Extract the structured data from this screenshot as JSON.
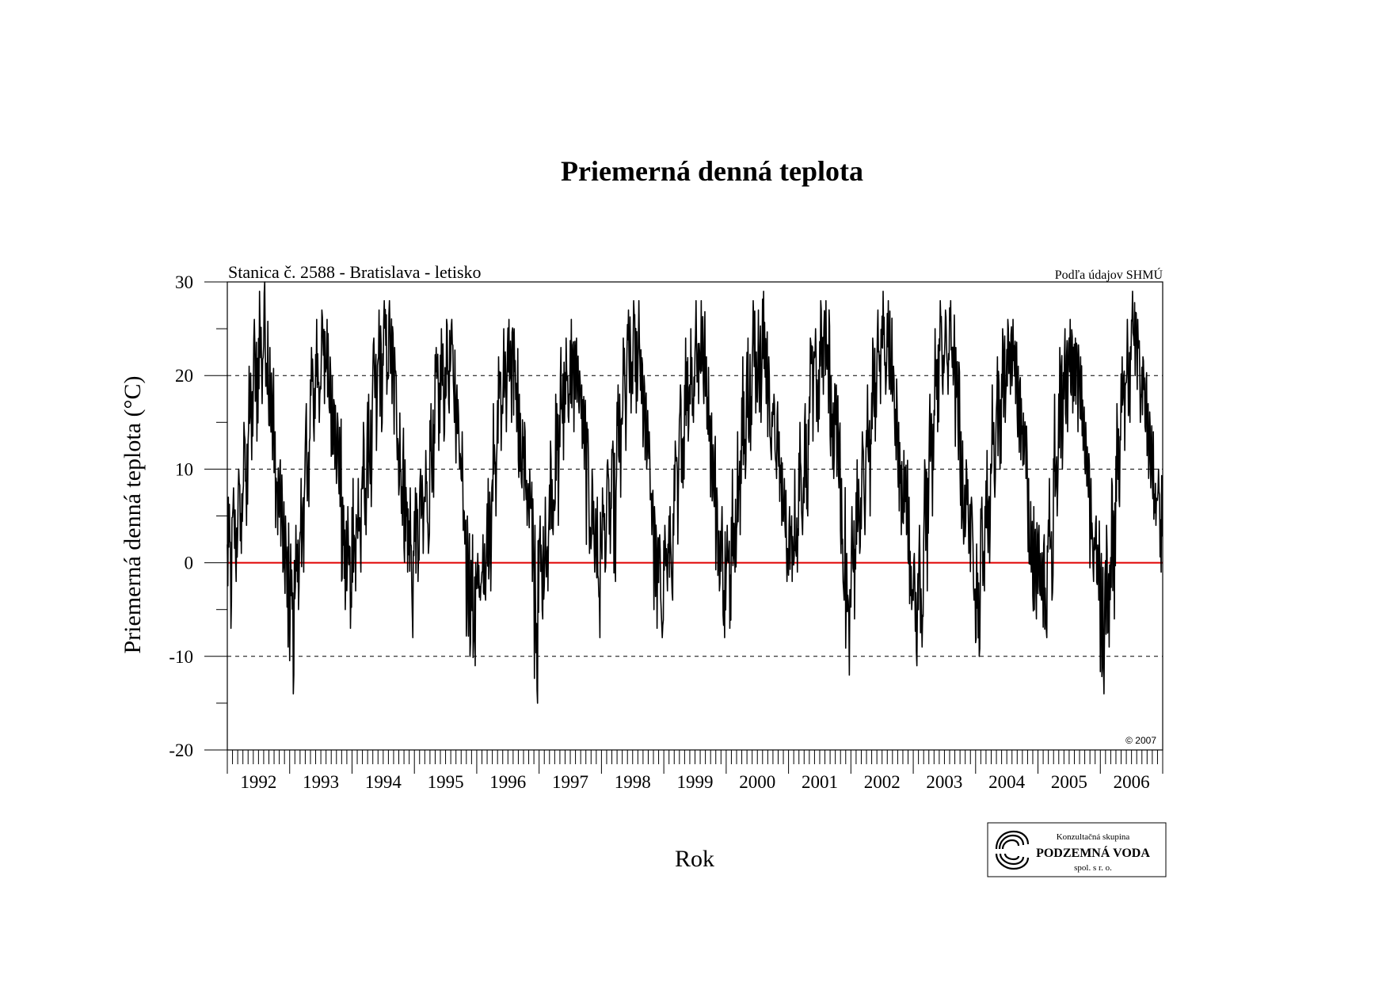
{
  "chart_data": {
    "type": "line",
    "title": "Priemerná denná teplota",
    "subtitle": "Stanica č. 2588 - Bratislava - letisko",
    "source": "Podľa údajov SHMÚ",
    "copyright": "© 2007",
    "xlabel": "Rok",
    "ylabel": "Priemerná denná teplota (°C)",
    "ylim": [
      -20,
      30
    ],
    "yticks": [
      30,
      20,
      10,
      0,
      -10,
      -20
    ],
    "gridlines": [
      20,
      10,
      -10
    ],
    "reference_line": {
      "value": 0,
      "color": "#e00000"
    },
    "x_year_labels": [
      "1992",
      "1993",
      "1994",
      "1995",
      "1996",
      "1997",
      "1998",
      "1999",
      "2000",
      "2001",
      "2002",
      "2003",
      "2004",
      "2005",
      "2006"
    ],
    "x_range": [
      "1992-01-01",
      "2006-12-31"
    ],
    "series": [
      {
        "color": "#000000",
        "x_unit": "month",
        "x": [
          "1992-01",
          "1992-02",
          "1992-03",
          "1992-04",
          "1992-05",
          "1992-06",
          "1992-07",
          "1992-08",
          "1992-09",
          "1992-10",
          "1992-11",
          "1992-12",
          "1993-01",
          "1993-02",
          "1993-03",
          "1993-04",
          "1993-05",
          "1993-06",
          "1993-07",
          "1993-08",
          "1993-09",
          "1993-10",
          "1993-11",
          "1993-12",
          "1994-01",
          "1994-02",
          "1994-03",
          "1994-04",
          "1994-05",
          "1994-06",
          "1994-07",
          "1994-08",
          "1994-09",
          "1994-10",
          "1994-11",
          "1994-12",
          "1995-01",
          "1995-02",
          "1995-03",
          "1995-04",
          "1995-05",
          "1995-06",
          "1995-07",
          "1995-08",
          "1995-09",
          "1995-10",
          "1995-11",
          "1995-12",
          "1996-01",
          "1996-02",
          "1996-03",
          "1996-04",
          "1996-05",
          "1996-06",
          "1996-07",
          "1996-08",
          "1996-09",
          "1996-10",
          "1996-11",
          "1996-12",
          "1997-01",
          "1997-02",
          "1997-03",
          "1997-04",
          "1997-05",
          "1997-06",
          "1997-07",
          "1997-08",
          "1997-09",
          "1997-10",
          "1997-11",
          "1997-12",
          "1998-01",
          "1998-02",
          "1998-03",
          "1998-04",
          "1998-05",
          "1998-06",
          "1998-07",
          "1998-08",
          "1998-09",
          "1998-10",
          "1998-11",
          "1998-12",
          "1999-01",
          "1999-02",
          "1999-03",
          "1999-04",
          "1999-05",
          "1999-06",
          "1999-07",
          "1999-08",
          "1999-09",
          "1999-10",
          "1999-11",
          "1999-12",
          "2000-01",
          "2000-02",
          "2000-03",
          "2000-04",
          "2000-05",
          "2000-06",
          "2000-07",
          "2000-08",
          "2000-09",
          "2000-10",
          "2000-11",
          "2000-12",
          "2001-01",
          "2001-02",
          "2001-03",
          "2001-04",
          "2001-05",
          "2001-06",
          "2001-07",
          "2001-08",
          "2001-09",
          "2001-10",
          "2001-11",
          "2001-12",
          "2002-01",
          "2002-02",
          "2002-03",
          "2002-04",
          "2002-05",
          "2002-06",
          "2002-07",
          "2002-08",
          "2002-09",
          "2002-10",
          "2002-11",
          "2002-12",
          "2003-01",
          "2003-02",
          "2003-03",
          "2003-04",
          "2003-05",
          "2003-06",
          "2003-07",
          "2003-08",
          "2003-09",
          "2003-10",
          "2003-11",
          "2003-12",
          "2004-01",
          "2004-02",
          "2004-03",
          "2004-04",
          "2004-05",
          "2004-06",
          "2004-07",
          "2004-08",
          "2004-09",
          "2004-10",
          "2004-11",
          "2004-12",
          "2005-01",
          "2005-02",
          "2005-03",
          "2005-04",
          "2005-05",
          "2005-06",
          "2005-07",
          "2005-08",
          "2005-09",
          "2005-10",
          "2005-11",
          "2005-12",
          "2006-01",
          "2006-02",
          "2006-03",
          "2006-04",
          "2006-05",
          "2006-06",
          "2006-07",
          "2006-08",
          "2006-09",
          "2006-10",
          "2006-11",
          "2006-12"
        ],
        "y_min": [
          -7,
          -2,
          1,
          4,
          11,
          13,
          17,
          18,
          11,
          3,
          -1,
          -9,
          -14,
          -5,
          -1,
          6,
          13,
          15,
          17,
          16,
          10,
          6,
          -5,
          -7,
          -3,
          -1,
          3,
          6,
          12,
          14,
          18,
          17,
          11,
          4,
          -1,
          -8,
          -2,
          1,
          1,
          7,
          12,
          13,
          16,
          15,
          10,
          2,
          -10,
          -11,
          -4,
          -4,
          -3,
          5,
          12,
          14,
          15,
          14,
          8,
          4,
          -2,
          -15,
          -6,
          -3,
          3,
          4,
          11,
          15,
          14,
          16,
          10,
          1,
          -1,
          -8,
          -1,
          1,
          -2,
          7,
          12,
          16,
          16,
          17,
          10,
          3,
          -7,
          -8,
          -3,
          -4,
          2,
          8,
          13,
          15,
          17,
          17,
          13,
          6,
          -3,
          -8,
          -7,
          -1,
          3,
          9,
          12,
          16,
          15,
          17,
          11,
          9,
          4,
          -2,
          -2,
          -1,
          3,
          5,
          13,
          14,
          18,
          16,
          9,
          8,
          -4,
          -12,
          -6,
          1,
          3,
          5,
          13,
          17,
          18,
          18,
          11,
          3,
          3,
          -5,
          -11,
          -9,
          -3,
          5,
          14,
          18,
          18,
          19,
          11,
          2,
          1,
          -4,
          -10,
          -3,
          0,
          7,
          10,
          15,
          18,
          17,
          11,
          9,
          -1,
          -6,
          -4,
          -8,
          -4,
          5,
          10,
          14,
          16,
          14,
          12,
          7,
          -2,
          -4,
          -14,
          -9,
          -6,
          6,
          12,
          15,
          20,
          15,
          14,
          8,
          4,
          -1
        ],
        "y_max": [
          7,
          8,
          10,
          15,
          21,
          26,
          29,
          30,
          23,
          14,
          11,
          5,
          2,
          4,
          9,
          17,
          23,
          26,
          27,
          26,
          20,
          16,
          7,
          6,
          9,
          9,
          15,
          18,
          24,
          27,
          28,
          28,
          23,
          16,
          11,
          8,
          8,
          10,
          12,
          17,
          23,
          25,
          26,
          26,
          19,
          14,
          5,
          3,
          1,
          3,
          9,
          17,
          22,
          25,
          26,
          25,
          18,
          15,
          10,
          4,
          5,
          7,
          13,
          18,
          23,
          24,
          26,
          24,
          19,
          15,
          10,
          7,
          8,
          11,
          13,
          19,
          24,
          27,
          28,
          28,
          20,
          14,
          6,
          3,
          4,
          6,
          13,
          19,
          24,
          25,
          28,
          28,
          22,
          16,
          8,
          6,
          4,
          10,
          14,
          22,
          24,
          28,
          27,
          29,
          22,
          18,
          14,
          9,
          6,
          10,
          15,
          17,
          24,
          25,
          28,
          28,
          20,
          19,
          9,
          1,
          6,
          11,
          14,
          19,
          24,
          27,
          29,
          28,
          21,
          15,
          12,
          7,
          1,
          4,
          11,
          18,
          25,
          28,
          27,
          28,
          23,
          14,
          11,
          7,
          2,
          7,
          12,
          19,
          22,
          25,
          26,
          26,
          21,
          16,
          9,
          6,
          4,
          3,
          9,
          18,
          23,
          25,
          26,
          24,
          22,
          15,
          9,
          5,
          1,
          4,
          9,
          17,
          22,
          26,
          29,
          26,
          22,
          17,
          14,
          10
        ]
      }
    ]
  },
  "logo": {
    "line1": "Konzultačná skupina",
    "line2": "PODZEMNÁ VODA",
    "line3": "spol. s r. o."
  }
}
